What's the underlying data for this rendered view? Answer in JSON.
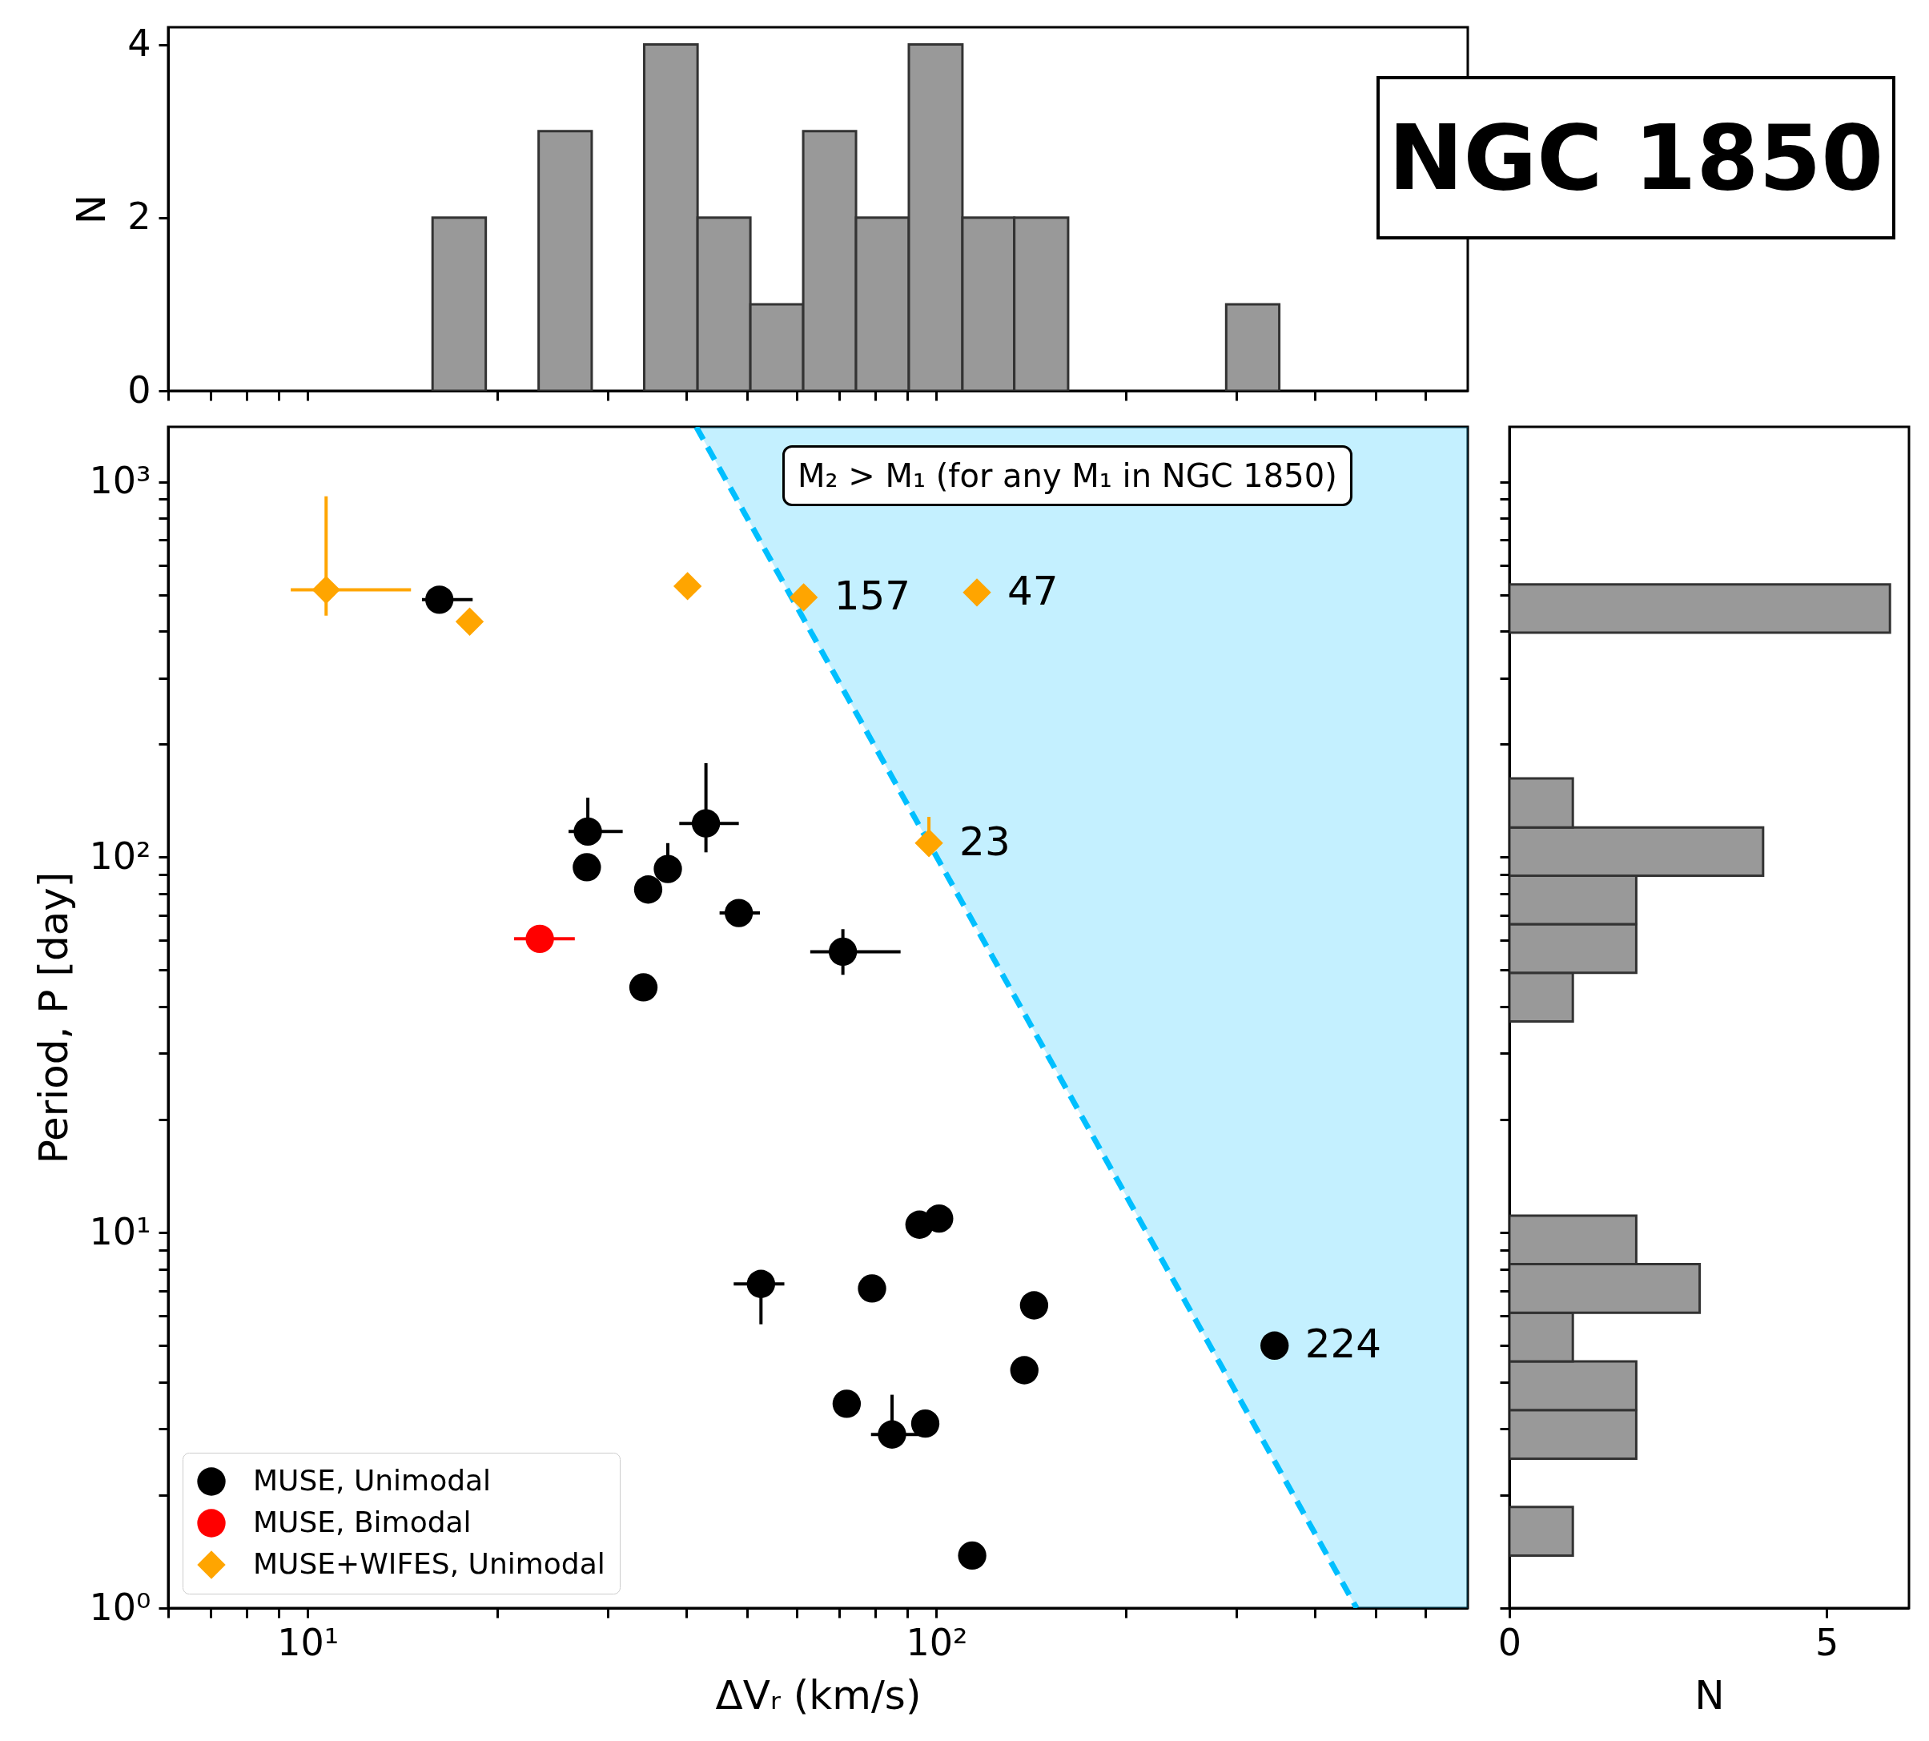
{
  "chart_data": [
    {
      "type": "histogram",
      "title": "NGC 1850",
      "ylabel": "N",
      "color": "#999999",
      "bins": [
        15.8,
        19.2,
        23.3,
        28.3,
        34.3,
        41.7,
        50.6,
        61.4,
        74.5,
        90.4,
        110,
        133,
        162,
        289,
        351
      ],
      "values": [
        2,
        0,
        3,
        0,
        4,
        2,
        1,
        3,
        2,
        4,
        2,
        2,
        0,
        1
      ],
      "log": "x",
      "xlim": [
        6,
        700
      ],
      "xticks": [
        {
          "value": 6,
          "label": null
        },
        {
          "value": 7,
          "label": null
        },
        {
          "value": 8,
          "label": null
        },
        {
          "value": 9,
          "label": null
        },
        {
          "value": 10,
          "label": null
        },
        {
          "value": 20,
          "label": null
        },
        {
          "value": 30,
          "label": null
        },
        {
          "value": 40,
          "label": null
        },
        {
          "value": 50,
          "label": null
        },
        {
          "value": 60,
          "label": null
        },
        {
          "value": 70,
          "label": null
        },
        {
          "value": 80,
          "label": null
        },
        {
          "value": 90,
          "label": null
        },
        {
          "value": 100,
          "label": null
        },
        {
          "value": 200,
          "label": null
        },
        {
          "value": 300,
          "label": null
        },
        {
          "value": 400,
          "label": null
        },
        {
          "value": 500,
          "label": null
        },
        {
          "value": 600,
          "label": null
        }
      ],
      "ylim": [
        0,
        4.2
      ],
      "yticks": [
        0,
        2,
        4
      ],
      "tick_labels": "y"
    },
    {
      "type": "scatter",
      "xlabel": "ΔVᵣ (km/s)",
      "ylabel": "Period, P [day]",
      "log": "xy",
      "legend": "bottom left",
      "xlim": [
        6,
        700
      ],
      "xticks": [
        {
          "value": 6,
          "label": null
        },
        {
          "value": 7,
          "label": null
        },
        {
          "value": 8,
          "label": null
        },
        {
          "value": 9,
          "label": null
        },
        {
          "value": 10,
          "label": "10¹"
        },
        {
          "value": 20,
          "label": null
        },
        {
          "value": 30,
          "label": null
        },
        {
          "value": 40,
          "label": null
        },
        {
          "value": 50,
          "label": null
        },
        {
          "value": 60,
          "label": null
        },
        {
          "value": 70,
          "label": null
        },
        {
          "value": 80,
          "label": null
        },
        {
          "value": 90,
          "label": null
        },
        {
          "value": 100,
          "label": "10²"
        },
        {
          "value": 200,
          "label": null
        },
        {
          "value": 300,
          "label": null
        },
        {
          "value": 400,
          "label": null
        },
        {
          "value": 500,
          "label": null
        },
        {
          "value": 600,
          "label": null
        }
      ],
      "ylim": [
        1,
        1400
      ],
      "yticks": [
        {
          "value": 1,
          "label": "10⁰"
        },
        {
          "value": 2,
          "label": null
        },
        {
          "value": 3,
          "label": null
        },
        {
          "value": 4,
          "label": null
        },
        {
          "value": 5,
          "label": null
        },
        {
          "value": 6,
          "label": null
        },
        {
          "value": 7,
          "label": null
        },
        {
          "value": 8,
          "label": null
        },
        {
          "value": 9,
          "label": null
        },
        {
          "value": 10,
          "label": "10¹"
        },
        {
          "value": 20,
          "label": null
        },
        {
          "value": 30,
          "label": null
        },
        {
          "value": 40,
          "label": null
        },
        {
          "value": 50,
          "label": null
        },
        {
          "value": 60,
          "label": null
        },
        {
          "value": 70,
          "label": null
        },
        {
          "value": 80,
          "label": null
        },
        {
          "value": 90,
          "label": null
        },
        {
          "value": 100,
          "label": "10²"
        },
        {
          "value": 200,
          "label": null
        },
        {
          "value": 300,
          "label": null
        },
        {
          "value": 400,
          "label": null
        },
        {
          "value": 500,
          "label": null
        },
        {
          "value": 600,
          "label": null
        },
        {
          "value": 700,
          "label": null
        },
        {
          "value": 800,
          "label": null
        },
        {
          "value": 900,
          "label": null
        },
        {
          "value": 1000,
          "label": "10³"
        }
      ],
      "series": [
        {
          "type": "line",
          "color": "#00bfff",
          "line_style": "dashed",
          "x": [
            41.5,
            466,
            700
          ],
          "values": [
            1400,
            1,
            null
          ],
          "lower": [
            1400,
            1,
            1
          ],
          "upper": [
            1400,
            1400,
            1400
          ]
        },
        {
          "name": "MUSE, Unimodal",
          "color": "#000000",
          "marker": "circle",
          "x": [
            16.2,
            27.9,
            27.8,
            37.4,
            34.8,
            43,
            48.5,
            34.2,
            71,
            52.6,
            79,
            94,
            101,
            143,
            138,
            72,
            85,
            96,
            114,
            345
          ],
          "values": [
            485,
            117,
            94,
            93,
            82,
            123,
            71,
            45,
            56,
            7.3,
            7.1,
            10.5,
            10.9,
            6.4,
            4.3,
            3.5,
            2.9,
            3.1,
            1.38,
            5.0
          ],
          "xerrors": [
            [
              15.2,
              18.3
            ],
            [
              26,
              31.7
            ],
            null,
            null,
            null,
            [
              39,
              48.5
            ],
            [
              45.2,
              52.4
            ],
            null,
            [
              63,
              87.7
            ],
            [
              47.6,
              57.3
            ],
            null,
            null,
            null,
            null,
            null,
            null,
            [
              78.7,
              97.9
            ],
            null,
            null,
            null
          ],
          "errors": [
            null,
            [
              117,
              144
            ],
            null,
            [
              93,
              109
            ],
            null,
            [
              103,
              178
            ],
            null,
            null,
            [
              48.6,
              64.3
            ],
            [
              5.7,
              7.3
            ],
            null,
            null,
            null,
            null,
            null,
            null,
            [
              2.9,
              3.7
            ],
            null,
            null,
            null
          ]
        },
        {
          "name": "MUSE, Bimodal",
          "color": "#ff0000",
          "marker": "circle",
          "x": [
            23.4
          ],
          "values": [
            60.6
          ],
          "xerrors": [
            [
              21.3,
              26.6
            ]
          ]
        },
        {
          "name": "MUSE+WIFES, Unimodal",
          "color": "#ffa500",
          "marker": "diamond",
          "x": [
            10.7,
            18.1,
            40.2,
            61.5,
            116,
            97.3
          ],
          "values": [
            515,
            424,
            527,
            492,
            507,
            109
          ],
          "xerrors": [
            [
              9.4,
              14.6
            ],
            null,
            null,
            null,
            null,
            null
          ],
          "errors": [
            [
              440,
              914
            ],
            null,
            null,
            null,
            null,
            [
              109,
              128
            ]
          ]
        }
      ],
      "annotations": [
        "M₂ > M₁ (for any M₁ in NGC 1850)",
        {
          "text": "157",
          "x": 61.5,
          "y": 492
        },
        {
          "text": "47",
          "x": 116,
          "y": 507
        },
        {
          "text": "23",
          "x": 97.3,
          "y": 109
        },
        {
          "text": "224",
          "x": 345,
          "y": 5.0
        }
      ]
    },
    {
      "type": "histogram",
      "orientation": "horizontal",
      "xlabel": "N",
      "color": "#999999",
      "bins": [
        1.38,
        1.86,
        2.5,
        3.37,
        4.54,
        6.12,
        8.24,
        11.1,
        36.5,
        49.2,
        66.3,
        89.2,
        120,
        162,
        396,
        533
      ],
      "values": [
        1,
        0,
        2,
        2,
        1,
        3,
        2,
        0,
        1,
        2,
        2,
        4,
        1,
        0,
        6
      ],
      "log": "y",
      "xlim": [
        0,
        6.3
      ],
      "xticks": [
        0,
        5
      ],
      "ylim": [
        1,
        1400
      ],
      "yticks": [
        {
          "value": 1,
          "label": null
        },
        {
          "value": 2,
          "label": null
        },
        {
          "value": 3,
          "label": null
        },
        {
          "value": 4,
          "label": null
        },
        {
          "value": 5,
          "label": null
        },
        {
          "value": 6,
          "label": null
        },
        {
          "value": 7,
          "label": null
        },
        {
          "value": 8,
          "label": null
        },
        {
          "value": 9,
          "label": null
        },
        {
          "value": 10,
          "label": null
        },
        {
          "value": 20,
          "label": null
        },
        {
          "value": 30,
          "label": null
        },
        {
          "value": 40,
          "label": null
        },
        {
          "value": 50,
          "label": null
        },
        {
          "value": 60,
          "label": null
        },
        {
          "value": 70,
          "label": null
        },
        {
          "value": 80,
          "label": null
        },
        {
          "value": 90,
          "label": null
        },
        {
          "value": 100,
          "label": null
        },
        {
          "value": 200,
          "label": null
        },
        {
          "value": 300,
          "label": null
        },
        {
          "value": 400,
          "label": null
        },
        {
          "value": 500,
          "label": null
        },
        {
          "value": 600,
          "label": null
        },
        {
          "value": 700,
          "label": null
        },
        {
          "value": 800,
          "label": null
        },
        {
          "value": 900,
          "label": null
        },
        {
          "value": 1000,
          "label": null
        }
      ],
      "tick_labels": "x"
    }
  ]
}
